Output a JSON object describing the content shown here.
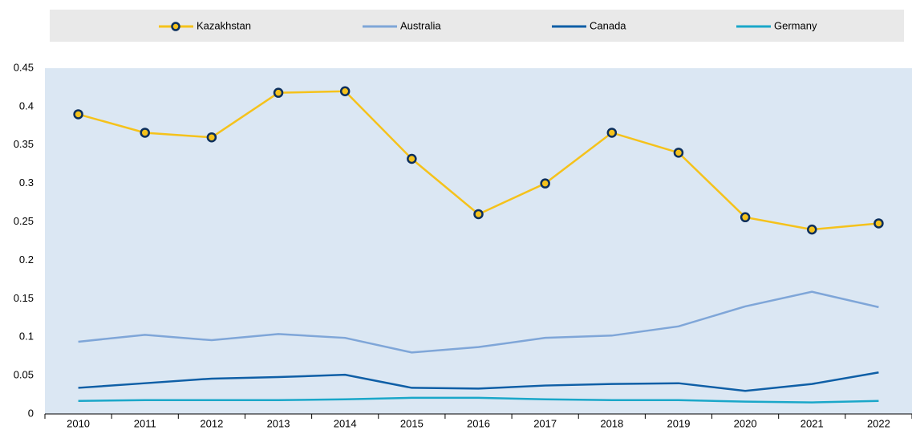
{
  "chart_data": {
    "type": "line",
    "categories": [
      "2010",
      "2011",
      "2012",
      "2013",
      "2014",
      "2015",
      "2016",
      "2017",
      "2018",
      "2019",
      "2020",
      "2021",
      "2022"
    ],
    "series": [
      {
        "name": "Kazakhstan",
        "color": "#f5c21b",
        "marker_color": "#0c2f5c",
        "markers": true,
        "values": [
          0.39,
          0.366,
          0.36,
          0.418,
          0.42,
          0.332,
          0.26,
          0.3,
          0.366,
          0.34,
          0.256,
          0.24,
          0.248
        ]
      },
      {
        "name": "Australia",
        "color": "#7fa6d8",
        "markers": false,
        "values": [
          0.094,
          0.103,
          0.096,
          0.104,
          0.099,
          0.08,
          0.087,
          0.099,
          0.102,
          0.114,
          0.14,
          0.159,
          0.139
        ]
      },
      {
        "name": "Canada",
        "color": "#0f5fa6",
        "markers": false,
        "values": [
          0.034,
          0.04,
          0.046,
          0.048,
          0.051,
          0.034,
          0.033,
          0.037,
          0.039,
          0.04,
          0.03,
          0.039,
          0.054
        ]
      },
      {
        "name": "Germany",
        "color": "#1aa7c9",
        "markers": false,
        "values": [
          0.017,
          0.018,
          0.018,
          0.018,
          0.019,
          0.021,
          0.021,
          0.019,
          0.018,
          0.018,
          0.016,
          0.015,
          0.017
        ]
      }
    ],
    "ylim": [
      0,
      0.45
    ],
    "yticks": [
      0,
      0.05,
      0.1,
      0.15,
      0.2,
      0.25,
      0.3,
      0.35,
      0.4,
      0.45
    ],
    "grid": false,
    "legend": "top"
  }
}
